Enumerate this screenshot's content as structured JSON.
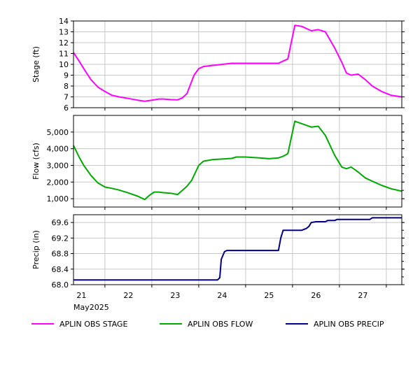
{
  "chart_data": [
    {
      "type": "line",
      "ylabel": "Stage (ft)",
      "ylim": [
        6,
        14
      ],
      "yticks": [
        6,
        7,
        8,
        9,
        10,
        11,
        12,
        13,
        14
      ],
      "xlim": [
        20.83,
        27.83
      ],
      "series": [
        {
          "name": "APLIN OBS STAGE",
          "color": "#ff00ff",
          "x": [
            20.83,
            20.95,
            21.05,
            21.2,
            21.35,
            21.5,
            21.65,
            21.8,
            22.0,
            22.2,
            22.35,
            22.5,
            22.65,
            22.75,
            22.9,
            23.05,
            23.15,
            23.25,
            23.4,
            23.5,
            23.6,
            23.8,
            24.0,
            24.2,
            24.3,
            24.5,
            24.8,
            25.0,
            25.2,
            25.3,
            25.4,
            25.55,
            25.7,
            25.9,
            26.05,
            26.2,
            26.4,
            26.55,
            26.65,
            26.75,
            26.9,
            27.05,
            27.2,
            27.4,
            27.6,
            27.83
          ],
          "y": [
            11.1,
            10.3,
            9.6,
            8.6,
            7.9,
            7.5,
            7.15,
            7.0,
            6.85,
            6.7,
            6.6,
            6.7,
            6.8,
            6.8,
            6.75,
            6.72,
            6.9,
            7.3,
            9.0,
            9.6,
            9.8,
            9.9,
            10.0,
            10.1,
            10.1,
            10.1,
            10.1,
            10.1,
            10.1,
            10.3,
            10.5,
            13.6,
            13.5,
            13.1,
            13.2,
            13.0,
            11.5,
            10.2,
            9.2,
            9.0,
            9.1,
            8.6,
            8.0,
            7.5,
            7.15,
            7.0
          ]
        }
      ]
    },
    {
      "type": "line",
      "ylabel": "Flow (cfs)",
      "ylim": [
        500,
        6000
      ],
      "yticks": [
        1000,
        2000,
        3000,
        4000,
        5000
      ],
      "ytick_labels": [
        "1,000",
        "2,000",
        "3,000",
        "4,000",
        "5,000"
      ],
      "xlim": [
        20.83,
        27.83
      ],
      "series": [
        {
          "name": "APLIN OBS FLOW",
          "color": "#00aa00",
          "x": [
            20.83,
            20.95,
            21.05,
            21.2,
            21.35,
            21.5,
            21.65,
            21.8,
            22.0,
            22.2,
            22.35,
            22.45,
            22.55,
            22.65,
            22.75,
            22.9,
            23.05,
            23.15,
            23.25,
            23.35,
            23.5,
            23.6,
            23.8,
            24.0,
            24.2,
            24.3,
            24.5,
            24.8,
            25.0,
            25.2,
            25.3,
            25.4,
            25.55,
            25.7,
            25.9,
            26.05,
            26.2,
            26.4,
            26.55,
            26.65,
            26.75,
            26.9,
            27.05,
            27.2,
            27.4,
            27.6,
            27.83
          ],
          "y": [
            4200,
            3500,
            3000,
            2400,
            1950,
            1700,
            1620,
            1520,
            1350,
            1150,
            950,
            1200,
            1400,
            1400,
            1360,
            1330,
            1250,
            1500,
            1750,
            2100,
            3000,
            3250,
            3350,
            3380,
            3420,
            3500,
            3500,
            3450,
            3400,
            3450,
            3550,
            3700,
            5650,
            5500,
            5300,
            5350,
            4800,
            3600,
            2900,
            2800,
            2900,
            2600,
            2250,
            2050,
            1800,
            1600,
            1450
          ]
        }
      ]
    },
    {
      "type": "line",
      "ylabel": "Precip (in)",
      "ylim": [
        68.0,
        69.8
      ],
      "yticks": [
        68.0,
        68.4,
        68.8,
        69.2,
        69.6
      ],
      "ytick_labels": [
        "68.0",
        "68.4",
        "68.8",
        "69.2",
        "69.6"
      ],
      "xlim": [
        20.83,
        27.83
      ],
      "series": [
        {
          "name": "APLIN OBS PRECIP",
          "color": "#000088",
          "x": [
            20.83,
            23.9,
            23.95,
            23.98,
            24.05,
            24.1,
            25.2,
            25.25,
            25.3,
            25.7,
            25.8,
            25.85,
            25.9,
            26.0,
            26.2,
            26.25,
            26.4,
            26.45,
            27.15,
            27.2,
            27.83
          ],
          "y": [
            68.12,
            68.12,
            68.18,
            68.65,
            68.85,
            68.88,
            68.88,
            69.2,
            69.4,
            69.4,
            69.45,
            69.5,
            69.6,
            69.62,
            69.62,
            69.65,
            69.65,
            69.68,
            69.68,
            69.72,
            69.72
          ]
        }
      ],
      "xticks": [
        21,
        22,
        23,
        24,
        25,
        26,
        27
      ],
      "xtick_labels": [
        "21",
        "22",
        "23",
        "24",
        "25",
        "26",
        "27"
      ],
      "xlabel_sub": "May2025"
    }
  ],
  "legend": [
    {
      "label": "APLIN OBS STAGE",
      "color": "#ff00ff"
    },
    {
      "label": "APLIN OBS FLOW",
      "color": "#00aa00"
    },
    {
      "label": "APLIN OBS PRECIP",
      "color": "#000088"
    }
  ]
}
